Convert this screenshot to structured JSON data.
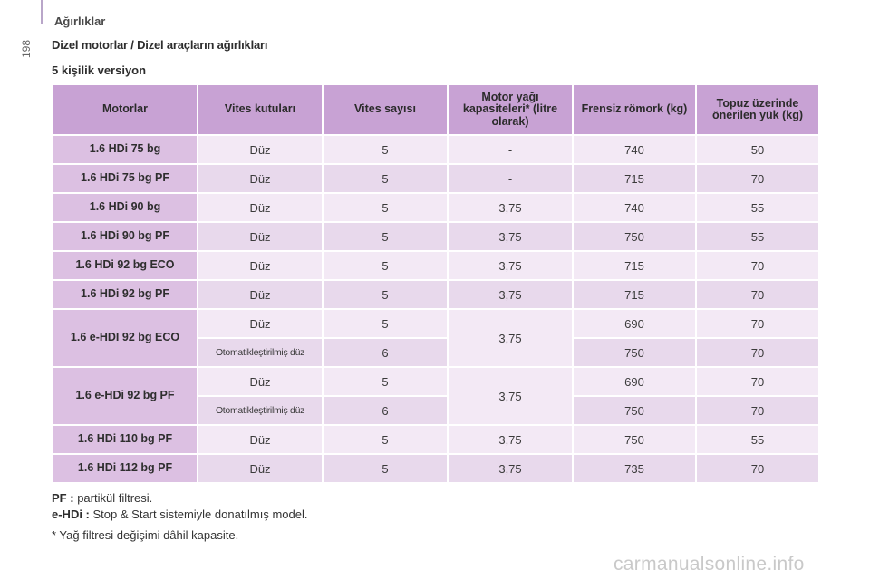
{
  "page": {
    "number": "198",
    "section": "Ağırlıklar",
    "title": "Dizel motorlar / Dizel araçların ağırlıkları",
    "subtitle": "5 kişilik versiyon"
  },
  "table": {
    "headers": [
      "Motorlar",
      "Vites kutuları",
      "Vites sayısı",
      "Motor yağı kapasiteleri* (litre olarak)",
      "Frensiz römork (kg)",
      "Topuz üzerinde önerilen yük (kg)"
    ],
    "rows": [
      {
        "engine": "1.6 HDi 75 bg",
        "gearbox": "Düz",
        "gears": "5",
        "oil": "-",
        "trailer": "740",
        "load": "50"
      },
      {
        "engine": "1.6 HDi 75 bg PF",
        "gearbox": "Düz",
        "gears": "5",
        "oil": "-",
        "trailer": "715",
        "load": "70"
      },
      {
        "engine": "1.6 HDi 90 bg",
        "gearbox": "Düz",
        "gears": "5",
        "oil": "3,75",
        "trailer": "740",
        "load": "55"
      },
      {
        "engine": "1.6 HDi 90 bg PF",
        "gearbox": "Düz",
        "gears": "5",
        "oil": "3,75",
        "trailer": "750",
        "load": "55"
      },
      {
        "engine": "1.6 HDi 92 bg ECO",
        "gearbox": "Düz",
        "gears": "5",
        "oil": "3,75",
        "trailer": "715",
        "load": "70"
      },
      {
        "engine": "1.6 HDi 92 bg PF",
        "gearbox": "Düz",
        "gears": "5",
        "oil": "3,75",
        "trailer": "715",
        "load": "70"
      }
    ],
    "groups": [
      {
        "engine": "1.6 e-HDI 92 bg ECO",
        "oil": "3,75",
        "sub": [
          {
            "gearbox": "Düz",
            "gears": "5",
            "trailer": "690",
            "load": "70"
          },
          {
            "gearbox": "Otomatikleştirilmiş düz",
            "gears": "6",
            "trailer": "750",
            "load": "70"
          }
        ]
      },
      {
        "engine": "1.6 e-HDi 92 bg PF",
        "oil": "3,75",
        "sub": [
          {
            "gearbox": "Düz",
            "gears": "5",
            "trailer": "690",
            "load": "70"
          },
          {
            "gearbox": "Otomatikleştirilmiş düz",
            "gears": "6",
            "trailer": "750",
            "load": "70"
          }
        ]
      }
    ],
    "tail_rows": [
      {
        "engine": "1.6 HDi 110 bg PF",
        "gearbox": "Düz",
        "gears": "5",
        "oil": "3,75",
        "trailer": "750",
        "load": "55"
      },
      {
        "engine": "1.6 HDi 112 bg PF",
        "gearbox": "Düz",
        "gears": "5",
        "oil": "3,75",
        "trailer": "735",
        "load": "70"
      }
    ]
  },
  "notes": {
    "pf_label": "PF :",
    "pf_text": "partikül filtresi.",
    "ehdi_label": "e-HDi :",
    "ehdi_text": "Stop & Start sistemiyle donatılmış model.",
    "footnote": "* Yağ filtresi değişimi dâhil kapasite."
  },
  "watermark": "carmanualsonline.info"
}
